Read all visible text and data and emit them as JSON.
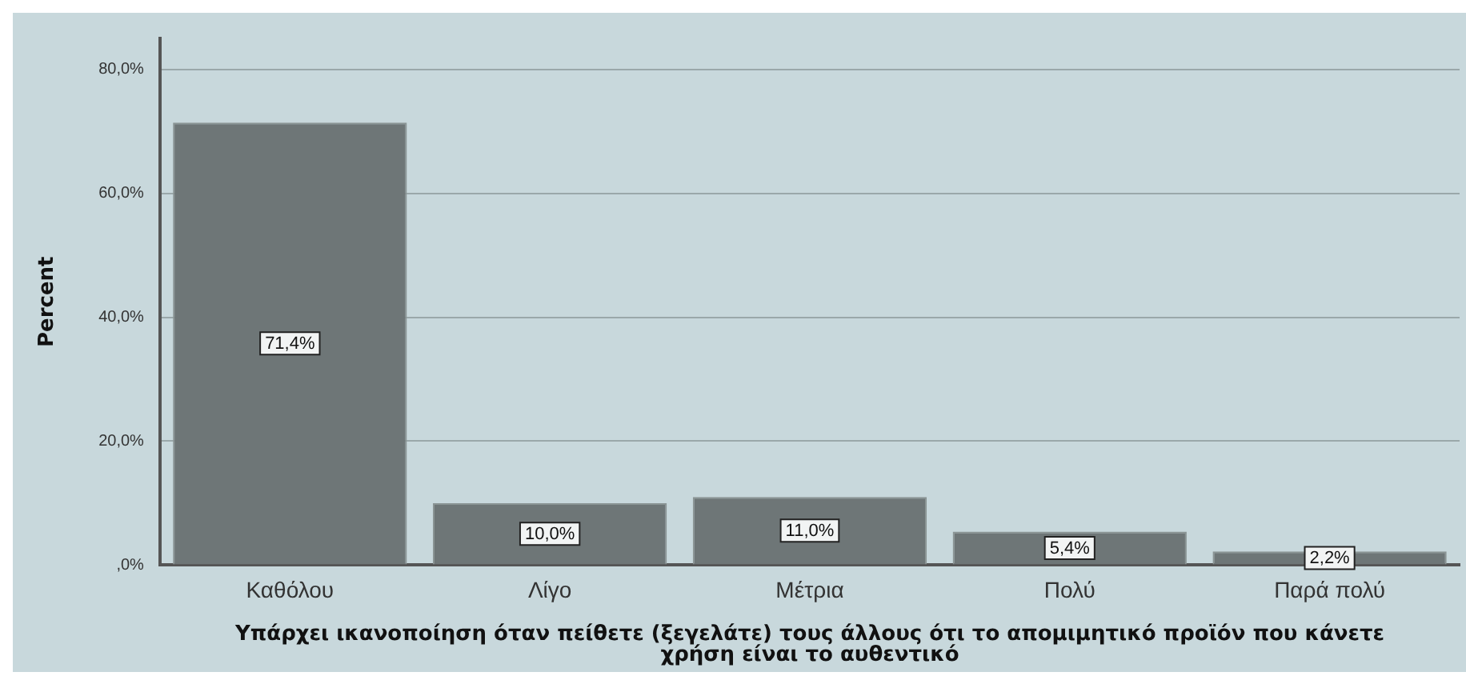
{
  "chart_data": {
    "type": "bar",
    "xlabel": "Υπάρχει ικανοποίηση όταν πείθετε (ξεγελάτε) τους άλλους ότι το απομιμητικό προϊόν που κάνετε χρήση είναι το αυθεντικό",
    "ylabel": "Percent",
    "categories": [
      "Καθόλου",
      "Λίγο",
      "Μέτρια",
      "Πολύ",
      "Παρά πολύ"
    ],
    "values": [
      71.4,
      10.0,
      11.0,
      5.4,
      2.2
    ],
    "value_labels": [
      "71,4%",
      "10,0%",
      "11,0%",
      "5,4%",
      "2,2%"
    ],
    "color": "#6e7677",
    "ylim": [
      0,
      85
    ],
    "yticks": [
      {
        "value": 0,
        "label": ",0%"
      },
      {
        "value": 20,
        "label": "20,0%"
      },
      {
        "value": 40,
        "label": "40,0%"
      },
      {
        "value": 60,
        "label": "60,0%"
      },
      {
        "value": 80,
        "label": "80,0%"
      }
    ],
    "grid": "y",
    "legend": false
  }
}
